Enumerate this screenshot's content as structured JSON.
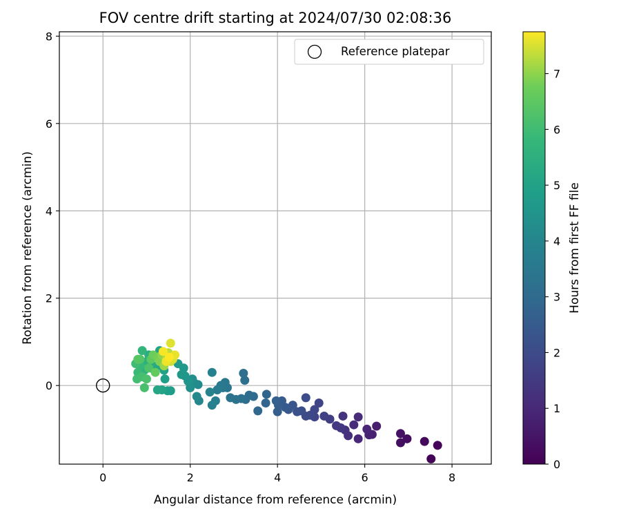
{
  "chart_data": {
    "type": "scatter",
    "title": "FOV centre drift starting at 2024/07/30 02:08:36",
    "xlabel": "Angular distance from reference (arcmin)",
    "ylabel": "Rotation from reference (arcmin)",
    "xlim": [
      -1.0,
      8.9
    ],
    "ylim": [
      -1.8,
      8.1
    ],
    "xticks": [
      0,
      2,
      4,
      6,
      8
    ],
    "yticks": [
      0,
      2,
      4,
      6,
      8
    ],
    "grid": true,
    "legend": {
      "position": "top-right",
      "entries": [
        "Reference platepar"
      ]
    },
    "reference_point": {
      "x": 0,
      "y": 0,
      "label": "Reference platepar"
    },
    "colorbar": {
      "label": "Hours from first FF file",
      "colormap": "viridis",
      "range": [
        0,
        7.75
      ],
      "ticks": [
        0,
        1,
        2,
        3,
        4,
        5,
        6,
        7
      ]
    },
    "series": [
      {
        "points": [
          {
            "x": 7.52,
            "y": -1.68,
            "h": 0.05
          },
          {
            "x": 7.67,
            "y": -1.37,
            "h": 0.1
          },
          {
            "x": 7.37,
            "y": -1.28,
            "h": 0.2
          },
          {
            "x": 6.97,
            "y": -1.22,
            "h": 0.3
          },
          {
            "x": 6.82,
            "y": -1.31,
            "h": 0.35
          },
          {
            "x": 6.82,
            "y": -1.1,
            "h": 0.4
          },
          {
            "x": 6.27,
            "y": -0.93,
            "h": 0.7
          },
          {
            "x": 6.17,
            "y": -1.12,
            "h": 0.8
          },
          {
            "x": 6.1,
            "y": -1.13,
            "h": 0.85
          },
          {
            "x": 6.05,
            "y": -1.0,
            "h": 0.9
          },
          {
            "x": 5.85,
            "y": -1.22,
            "h": 1.0
          },
          {
            "x": 5.85,
            "y": -0.72,
            "h": 1.1
          },
          {
            "x": 5.75,
            "y": -0.9,
            "h": 1.15
          },
          {
            "x": 5.62,
            "y": -1.15,
            "h": 1.2
          },
          {
            "x": 5.55,
            "y": -1.02,
            "h": 1.25
          },
          {
            "x": 5.5,
            "y": -0.7,
            "h": 1.3
          },
          {
            "x": 5.45,
            "y": -0.97,
            "h": 1.4
          },
          {
            "x": 5.35,
            "y": -0.92,
            "h": 1.5
          },
          {
            "x": 5.2,
            "y": -0.77,
            "h": 1.6
          },
          {
            "x": 5.07,
            "y": -0.7,
            "h": 1.7
          },
          {
            "x": 4.95,
            "y": -0.4,
            "h": 1.75
          },
          {
            "x": 4.85,
            "y": -0.72,
            "h": 1.8
          },
          {
            "x": 4.85,
            "y": -0.55,
            "h": 1.85
          },
          {
            "x": 4.75,
            "y": -0.68,
            "h": 1.9
          },
          {
            "x": 4.65,
            "y": -0.7,
            "h": 2.0
          },
          {
            "x": 4.65,
            "y": -0.28,
            "h": 2.05
          },
          {
            "x": 4.55,
            "y": -0.58,
            "h": 2.1
          },
          {
            "x": 4.45,
            "y": -0.6,
            "h": 2.2
          },
          {
            "x": 4.35,
            "y": -0.45,
            "h": 2.3
          },
          {
            "x": 4.25,
            "y": -0.55,
            "h": 2.4
          },
          {
            "x": 4.18,
            "y": -0.5,
            "h": 2.45
          },
          {
            "x": 4.1,
            "y": -0.35,
            "h": 2.5
          },
          {
            "x": 4.02,
            "y": -0.45,
            "h": 2.55
          },
          {
            "x": 4.0,
            "y": -0.6,
            "h": 2.6
          },
          {
            "x": 3.97,
            "y": -0.35,
            "h": 2.7
          },
          {
            "x": 3.75,
            "y": -0.2,
            "h": 2.8
          },
          {
            "x": 3.73,
            "y": -0.4,
            "h": 2.85
          },
          {
            "x": 3.55,
            "y": -0.58,
            "h": 2.9
          },
          {
            "x": 3.45,
            "y": -0.25,
            "h": 3.0
          },
          {
            "x": 3.35,
            "y": -0.22,
            "h": 3.05
          },
          {
            "x": 3.27,
            "y": -0.32,
            "h": 3.1
          },
          {
            "x": 3.25,
            "y": 0.12,
            "h": 3.15
          },
          {
            "x": 3.22,
            "y": 0.28,
            "h": 3.2
          },
          {
            "x": 3.17,
            "y": -0.3,
            "h": 3.25
          },
          {
            "x": 3.05,
            "y": -0.32,
            "h": 3.3
          },
          {
            "x": 2.92,
            "y": -0.28,
            "h": 3.35
          },
          {
            "x": 2.85,
            "y": -0.05,
            "h": 3.4
          },
          {
            "x": 2.8,
            "y": 0.07,
            "h": 3.45
          },
          {
            "x": 2.75,
            "y": -0.05,
            "h": 3.5
          },
          {
            "x": 2.7,
            "y": 0.0,
            "h": 3.55
          },
          {
            "x": 2.62,
            "y": -0.1,
            "h": 3.6
          },
          {
            "x": 2.58,
            "y": -0.35,
            "h": 3.7
          },
          {
            "x": 2.5,
            "y": -0.45,
            "h": 3.8
          },
          {
            "x": 2.5,
            "y": 0.3,
            "h": 3.85
          },
          {
            "x": 2.45,
            "y": -0.15,
            "h": 3.9
          },
          {
            "x": 2.2,
            "y": -0.35,
            "h": 4.0
          },
          {
            "x": 2.18,
            "y": 0.02,
            "h": 4.1
          },
          {
            "x": 2.15,
            "y": -0.25,
            "h": 4.15
          },
          {
            "x": 2.1,
            "y": 0.05,
            "h": 4.2
          },
          {
            "x": 2.05,
            "y": 0.15,
            "h": 4.3
          },
          {
            "x": 2.0,
            "y": -0.05,
            "h": 4.4
          },
          {
            "x": 1.95,
            "y": 0.1,
            "h": 4.5
          },
          {
            "x": 1.88,
            "y": 0.22,
            "h": 4.55
          },
          {
            "x": 1.8,
            "y": 0.25,
            "h": 4.6
          },
          {
            "x": 1.85,
            "y": 0.4,
            "h": 4.65
          },
          {
            "x": 1.72,
            "y": 0.5,
            "h": 4.7
          },
          {
            "x": 1.55,
            "y": -0.12,
            "h": 4.8
          },
          {
            "x": 1.48,
            "y": -0.12,
            "h": 4.85
          },
          {
            "x": 1.42,
            "y": 0.15,
            "h": 4.9
          },
          {
            "x": 1.4,
            "y": 0.35,
            "h": 4.95
          },
          {
            "x": 1.3,
            "y": 0.8,
            "h": 5.0
          },
          {
            "x": 1.35,
            "y": -0.1,
            "h": 5.05
          },
          {
            "x": 1.25,
            "y": 0.45,
            "h": 5.1
          },
          {
            "x": 1.25,
            "y": -0.1,
            "h": 5.15
          },
          {
            "x": 1.15,
            "y": 0.38,
            "h": 5.2
          },
          {
            "x": 1.1,
            "y": 0.5,
            "h": 5.3
          },
          {
            "x": 1.05,
            "y": 0.7,
            "h": 5.4
          },
          {
            "x": 1.0,
            "y": 0.55,
            "h": 5.5
          },
          {
            "x": 0.95,
            "y": 0.35,
            "h": 5.6
          },
          {
            "x": 0.9,
            "y": 0.8,
            "h": 5.7
          },
          {
            "x": 0.85,
            "y": 0.45,
            "h": 5.8
          },
          {
            "x": 0.8,
            "y": 0.3,
            "h": 5.9
          },
          {
            "x": 0.75,
            "y": 0.5,
            "h": 6.0
          },
          {
            "x": 0.78,
            "y": 0.15,
            "h": 6.05
          },
          {
            "x": 0.9,
            "y": 0.2,
            "h": 6.1
          },
          {
            "x": 0.95,
            "y": -0.05,
            "h": 6.15
          },
          {
            "x": 1.0,
            "y": 0.15,
            "h": 6.2
          },
          {
            "x": 1.05,
            "y": 0.4,
            "h": 6.25
          },
          {
            "x": 0.85,
            "y": 0.6,
            "h": 6.3
          },
          {
            "x": 0.8,
            "y": 0.6,
            "h": 6.4
          },
          {
            "x": 1.1,
            "y": 0.6,
            "h": 6.5
          },
          {
            "x": 1.2,
            "y": 0.3,
            "h": 6.6
          },
          {
            "x": 1.15,
            "y": 0.7,
            "h": 6.7
          },
          {
            "x": 1.25,
            "y": 0.65,
            "h": 6.8
          },
          {
            "x": 1.3,
            "y": 0.55,
            "h": 6.9
          },
          {
            "x": 1.35,
            "y": 0.7,
            "h": 7.0
          },
          {
            "x": 1.4,
            "y": 0.45,
            "h": 7.1
          },
          {
            "x": 1.45,
            "y": 0.6,
            "h": 7.2
          },
          {
            "x": 1.5,
            "y": 0.75,
            "h": 7.3
          },
          {
            "x": 1.55,
            "y": 0.55,
            "h": 7.4
          },
          {
            "x": 1.6,
            "y": 0.6,
            "h": 7.5
          },
          {
            "x": 1.55,
            "y": 0.97,
            "h": 7.55
          },
          {
            "x": 1.65,
            "y": 0.7,
            "h": 7.6
          },
          {
            "x": 1.45,
            "y": 0.55,
            "h": 7.65
          },
          {
            "x": 1.38,
            "y": 0.78,
            "h": 7.7
          },
          {
            "x": 1.52,
            "y": 0.65,
            "h": 7.75
          }
        ]
      }
    ]
  }
}
